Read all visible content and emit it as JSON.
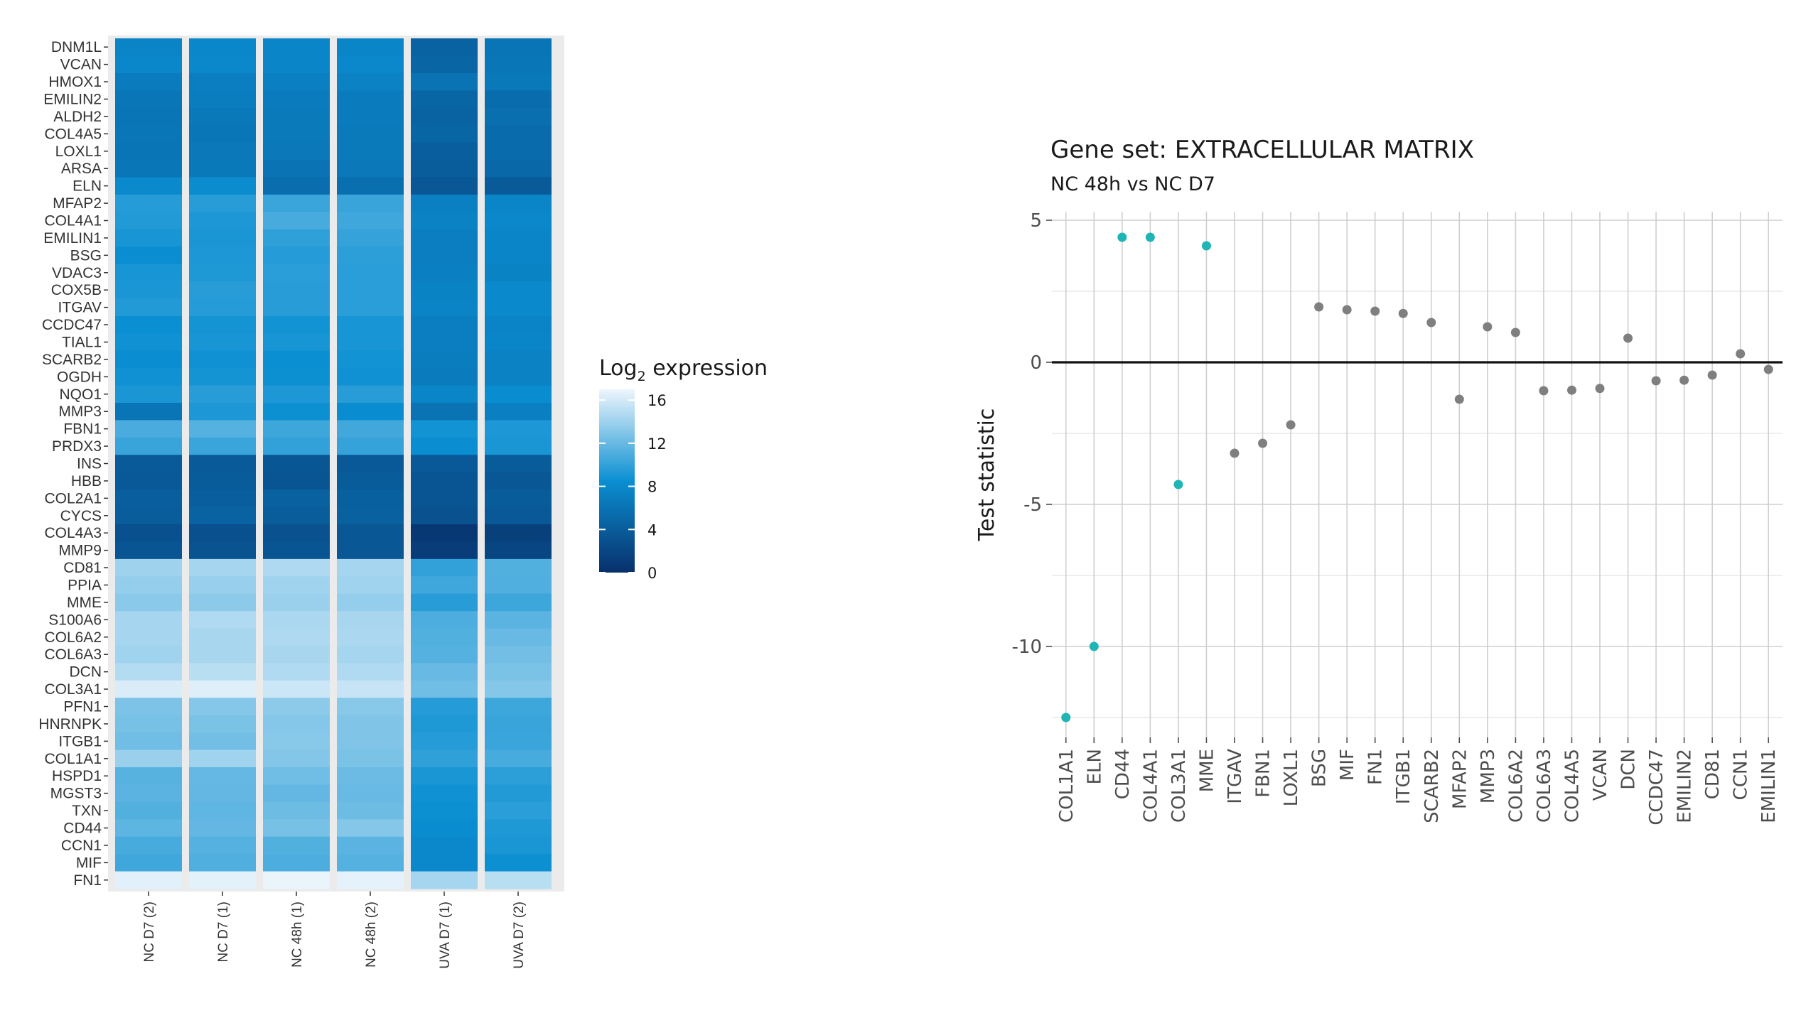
{
  "chart_data": [
    {
      "type": "heatmap",
      "title": "",
      "legend_title": "Log",
      "legend_title_subscript": "2",
      "legend_title_suffix": " expression",
      "legend_ticks": [
        16,
        12,
        8,
        4,
        0
      ],
      "value_range": [
        0,
        17
      ],
      "color_low": "#08306b",
      "color_mid": "#0a8fd2",
      "color_high": "#eef6fc",
      "columns": [
        "NC D7 (2)",
        "NC D7 (1)",
        "NC 48h (1)",
        "NC 48h (2)",
        "UVA D7 (1)",
        "UVA D7 (2)"
      ],
      "rows": [
        {
          "gene": "DNM1L",
          "values": [
            7.5,
            7.8,
            7.6,
            7.7,
            4.5,
            6.2
          ]
        },
        {
          "gene": "VCAN",
          "values": [
            7.8,
            7.9,
            7.7,
            7.9,
            4.7,
            6.3
          ]
        },
        {
          "gene": "HMOX1",
          "values": [
            6.8,
            7.0,
            7.2,
            7.3,
            6.0,
            6.5
          ]
        },
        {
          "gene": "EMILIN2",
          "values": [
            6.3,
            6.9,
            6.7,
            6.8,
            4.8,
            5.4
          ]
        },
        {
          "gene": "ALDH2",
          "values": [
            6.2,
            6.5,
            6.6,
            6.8,
            4.6,
            5.6
          ]
        },
        {
          "gene": "COL4A5",
          "values": [
            6.3,
            6.3,
            6.6,
            6.6,
            4.8,
            5.3
          ]
        },
        {
          "gene": "LOXL1",
          "values": [
            6.2,
            6.4,
            6.4,
            6.6,
            4.2,
            5.3
          ]
        },
        {
          "gene": "ARSA",
          "values": [
            6.3,
            6.5,
            6.0,
            6.4,
            4.0,
            5.0
          ]
        },
        {
          "gene": "ELN",
          "values": [
            8.0,
            8.2,
            5.5,
            5.6,
            3.5,
            3.8
          ]
        },
        {
          "gene": "MFAP2",
          "values": [
            9.5,
            9.6,
            10.3,
            10.2,
            7.2,
            7.6
          ]
        },
        {
          "gene": "COL4A1",
          "values": [
            9.4,
            9.2,
            10.8,
            10.5,
            7.3,
            7.9
          ]
        },
        {
          "gene": "EMILIN1",
          "values": [
            9.0,
            9.1,
            9.9,
            10.1,
            7.0,
            7.6
          ]
        },
        {
          "gene": "BSG",
          "values": [
            8.4,
            9.2,
            9.5,
            9.8,
            7.0,
            7.7
          ]
        },
        {
          "gene": "VDAC3",
          "values": [
            9.0,
            9.3,
            9.7,
            9.7,
            7.1,
            7.4
          ]
        },
        {
          "gene": "COX5B",
          "values": [
            9.1,
            9.6,
            9.6,
            9.7,
            7.4,
            8.0
          ]
        },
        {
          "gene": "ITGAV",
          "values": [
            9.4,
            9.5,
            9.6,
            9.7,
            7.5,
            8.0
          ]
        },
        {
          "gene": "CCDC47",
          "values": [
            8.5,
            8.9,
            8.8,
            9.0,
            7.0,
            7.5
          ]
        },
        {
          "gene": "TIAL1",
          "values": [
            8.7,
            9.0,
            9.0,
            9.0,
            7.0,
            7.6
          ]
        },
        {
          "gene": "SCARB2",
          "values": [
            8.4,
            8.7,
            8.5,
            8.8,
            6.9,
            7.3
          ]
        },
        {
          "gene": "OGDH",
          "values": [
            8.7,
            8.9,
            8.6,
            8.7,
            6.8,
            7.3
          ]
        },
        {
          "gene": "NQO1",
          "values": [
            9.1,
            9.6,
            9.2,
            9.6,
            7.6,
            8.3
          ]
        },
        {
          "gene": "MMP3",
          "values": [
            6.2,
            9.2,
            8.6,
            8.3,
            6.0,
            7.2
          ]
        },
        {
          "gene": "FBN1",
          "values": [
            10.9,
            11.3,
            10.4,
            10.6,
            8.8,
            9.2
          ]
        },
        {
          "gene": "PRDX3",
          "values": [
            10.2,
            10.3,
            10.0,
            10.1,
            8.4,
            9.1
          ]
        },
        {
          "gene": "INS",
          "values": [
            3.8,
            3.8,
            3.4,
            3.6,
            3.6,
            3.9
          ]
        },
        {
          "gene": "HBB",
          "values": [
            3.7,
            3.9,
            3.3,
            3.9,
            3.2,
            3.5
          ]
        },
        {
          "gene": "COL2A1",
          "values": [
            4.2,
            4.2,
            4.4,
            4.3,
            3.3,
            3.9
          ]
        },
        {
          "gene": "CYCS",
          "values": [
            4.0,
            4.5,
            4.0,
            4.4,
            3.0,
            3.6
          ]
        },
        {
          "gene": "COL4A3",
          "values": [
            2.9,
            2.9,
            3.0,
            3.5,
            0.7,
            1.4
          ]
        },
        {
          "gene": "MMP9",
          "values": [
            3.2,
            3.1,
            3.3,
            3.5,
            1.2,
            2.0
          ]
        },
        {
          "gene": "CD81",
          "values": [
            14.0,
            14.3,
            14.6,
            14.3,
            10.0,
            11.2
          ]
        },
        {
          "gene": "PPIA",
          "values": [
            13.7,
            13.8,
            14.1,
            14.1,
            10.5,
            11.1
          ]
        },
        {
          "gene": "MME",
          "values": [
            13.3,
            13.4,
            13.9,
            13.7,
            9.6,
            10.4
          ]
        },
        {
          "gene": "S100A6",
          "values": [
            14.3,
            14.7,
            14.5,
            14.4,
            11.0,
            11.5
          ]
        },
        {
          "gene": "COL6A2",
          "values": [
            14.3,
            14.4,
            14.6,
            14.5,
            11.2,
            12.0
          ]
        },
        {
          "gene": "COL6A3",
          "values": [
            14.1,
            14.4,
            14.4,
            14.3,
            11.3,
            12.4
          ]
        },
        {
          "gene": "DCN",
          "values": [
            14.8,
            15.0,
            14.7,
            14.7,
            12.0,
            12.7
          ]
        },
        {
          "gene": "COL3A1",
          "values": [
            16.2,
            16.4,
            15.7,
            15.5,
            12.3,
            13.1
          ]
        },
        {
          "gene": "PFN1",
          "values": [
            12.8,
            13.1,
            13.4,
            13.2,
            9.5,
            10.4
          ]
        },
        {
          "gene": "HNRNPK",
          "values": [
            12.6,
            12.7,
            13.1,
            12.9,
            9.3,
            10.2
          ]
        },
        {
          "gene": "ITGB1",
          "values": [
            12.3,
            12.4,
            13.2,
            12.9,
            9.5,
            10.3
          ]
        },
        {
          "gene": "COL1A1",
          "values": [
            13.9,
            14.1,
            13.0,
            12.7,
            9.9,
            10.8
          ]
        },
        {
          "gene": "HSPD1",
          "values": [
            11.4,
            11.9,
            12.3,
            12.1,
            9.1,
            9.8
          ]
        },
        {
          "gene": "MGST3",
          "values": [
            11.5,
            11.8,
            11.8,
            12.0,
            8.7,
            9.4
          ]
        },
        {
          "gene": "TXN",
          "values": [
            11.2,
            11.7,
            12.2,
            12.2,
            8.6,
            9.7
          ]
        },
        {
          "gene": "CD44",
          "values": [
            11.6,
            11.8,
            12.6,
            13.1,
            8.3,
            9.3
          ]
        },
        {
          "gene": "CCN1",
          "values": [
            10.8,
            11.3,
            11.2,
            11.5,
            7.9,
            9.1
          ]
        },
        {
          "gene": "MIF",
          "values": [
            10.5,
            11.1,
            11.0,
            11.3,
            7.9,
            8.6
          ]
        },
        {
          "gene": "FN1",
          "values": [
            16.5,
            16.6,
            16.8,
            16.7,
            14.3,
            15.0
          ]
        }
      ]
    },
    {
      "type": "scatter",
      "title": "Gene set: EXTRACELLULAR MATRIX",
      "subtitle": "NC 48h vs NC D7",
      "xlabel": "",
      "ylabel": "Test statistic",
      "ylim": [
        -13.2,
        5.3
      ],
      "yticks": [
        5,
        0,
        -5,
        -10
      ],
      "hline": 0,
      "grid": true,
      "highlight_color": "#1fb5b5",
      "default_color": "#7f7f7f",
      "points": [
        {
          "gene": "COL1A1",
          "value": -12.5,
          "highlight": true
        },
        {
          "gene": "ELN",
          "value": -10.0,
          "highlight": true
        },
        {
          "gene": "CD44",
          "value": 4.4,
          "highlight": true
        },
        {
          "gene": "COL4A1",
          "value": 4.4,
          "highlight": true
        },
        {
          "gene": "COL3A1",
          "value": -4.3,
          "highlight": true
        },
        {
          "gene": "MME",
          "value": 4.1,
          "highlight": true
        },
        {
          "gene": "ITGAV",
          "value": -3.2,
          "highlight": false
        },
        {
          "gene": "FBN1",
          "value": -2.85,
          "highlight": false
        },
        {
          "gene": "LOXL1",
          "value": -2.2,
          "highlight": false
        },
        {
          "gene": "BSG",
          "value": 1.95,
          "highlight": false
        },
        {
          "gene": "MIF",
          "value": 1.85,
          "highlight": false
        },
        {
          "gene": "FN1",
          "value": 1.8,
          "highlight": false
        },
        {
          "gene": "ITGB1",
          "value": 1.72,
          "highlight": false
        },
        {
          "gene": "SCARB2",
          "value": 1.4,
          "highlight": false
        },
        {
          "gene": "MFAP2",
          "value": -1.3,
          "highlight": false
        },
        {
          "gene": "MMP3",
          "value": 1.25,
          "highlight": false
        },
        {
          "gene": "COL6A2",
          "value": 1.05,
          "highlight": false
        },
        {
          "gene": "COL6A3",
          "value": -1.0,
          "highlight": false
        },
        {
          "gene": "COL4A5",
          "value": -0.98,
          "highlight": false
        },
        {
          "gene": "VCAN",
          "value": -0.92,
          "highlight": false
        },
        {
          "gene": "DCN",
          "value": 0.85,
          "highlight": false
        },
        {
          "gene": "CCDC47",
          "value": -0.65,
          "highlight": false
        },
        {
          "gene": "EMILIN2",
          "value": -0.63,
          "highlight": false
        },
        {
          "gene": "CD81",
          "value": -0.45,
          "highlight": false
        },
        {
          "gene": "CCN1",
          "value": 0.3,
          "highlight": false
        },
        {
          "gene": "EMILIN1",
          "value": -0.25,
          "highlight": false
        }
      ]
    }
  ]
}
